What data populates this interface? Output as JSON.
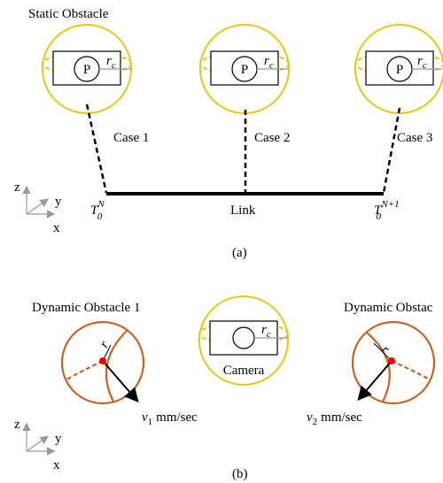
{
  "panel_a": {
    "title": "Static Obstacle",
    "obstacles": [
      {
        "center": "P",
        "radius": {
          "base": "r",
          "sub": "c"
        },
        "case": "Case 1"
      },
      {
        "center": "P",
        "radius": {
          "base": "r",
          "sub": "c"
        },
        "case": "Case 2"
      },
      {
        "center": "P",
        "radius": {
          "base": "r",
          "sub": "c"
        },
        "case": "Case 3"
      }
    ],
    "link": "Link",
    "start_node": {
      "base": "T",
      "sub": "0",
      "sup": "N"
    },
    "end_node": {
      "base": "T",
      "sub": "0",
      "sup": "N+1"
    },
    "axes": {
      "z": "z",
      "y": "y",
      "x": "x"
    },
    "caption": "(a)"
  },
  "panel_b": {
    "obstacles": [
      {
        "title": "Dynamic Obstacle 1",
        "radius": "r",
        "velocity": {
          "base": "v",
          "sub": "1",
          "unit": "mm/sec"
        }
      },
      {
        "title": "Dynamic Obstac",
        "radius": "r",
        "velocity": {
          "base": "v",
          "sub": "2",
          "unit": "mm/sec"
        }
      }
    ],
    "camera": {
      "label": "Camera",
      "radius": {
        "base": "r",
        "sub": "c"
      }
    },
    "axes": {
      "z": "z",
      "y": "y",
      "x": "x"
    },
    "caption": "(b)"
  }
}
